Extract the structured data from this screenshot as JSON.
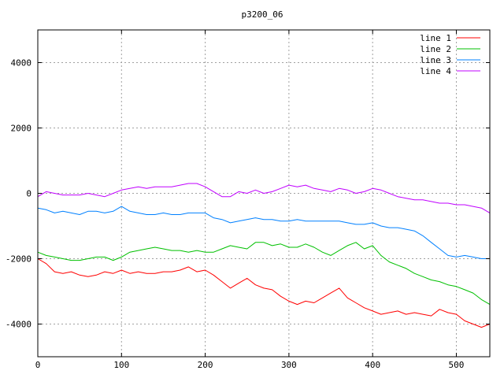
{
  "chart_data": {
    "type": "line",
    "title": "p3200_06",
    "xlabel": "",
    "ylabel": "",
    "xlim": [
      0,
      540
    ],
    "ylim": [
      -5000,
      5000
    ],
    "x_ticks": [
      0,
      100,
      200,
      300,
      400,
      500
    ],
    "y_ticks": [
      -4000,
      -2000,
      0,
      2000,
      4000
    ],
    "grid": true,
    "legend_position": "top-right",
    "x": [
      0,
      10,
      20,
      30,
      40,
      50,
      60,
      70,
      80,
      90,
      100,
      110,
      120,
      130,
      140,
      150,
      160,
      170,
      180,
      190,
      200,
      210,
      220,
      230,
      240,
      250,
      260,
      270,
      280,
      290,
      300,
      310,
      320,
      330,
      340,
      350,
      360,
      370,
      380,
      390,
      400,
      410,
      420,
      430,
      440,
      450,
      460,
      470,
      480,
      490,
      500,
      510,
      520,
      530,
      540
    ],
    "series": [
      {
        "name": "line 1",
        "color": "#ff0000",
        "values": [
          -2000,
          -2150,
          -2400,
          -2450,
          -2400,
          -2500,
          -2550,
          -2500,
          -2400,
          -2450,
          -2350,
          -2450,
          -2400,
          -2450,
          -2450,
          -2400,
          -2400,
          -2350,
          -2250,
          -2400,
          -2350,
          -2500,
          -2700,
          -2900,
          -2750,
          -2600,
          -2800,
          -2900,
          -2950,
          -3150,
          -3300,
          -3400,
          -3300,
          -3350,
          -3200,
          -3050,
          -2900,
          -3200,
          -3350,
          -3500,
          -3600,
          -3700,
          -3650,
          -3600,
          -3700,
          -3650,
          -3700,
          -3750,
          -3550,
          -3650,
          -3700,
          -3900,
          -4000,
          -4100,
          -4000
        ]
      },
      {
        "name": "line 2",
        "color": "#00c000",
        "values": [
          -1800,
          -1900,
          -1950,
          -2000,
          -2050,
          -2050,
          -2000,
          -1950,
          -1950,
          -2050,
          -1950,
          -1800,
          -1750,
          -1700,
          -1650,
          -1700,
          -1750,
          -1750,
          -1800,
          -1750,
          -1800,
          -1800,
          -1700,
          -1600,
          -1650,
          -1700,
          -1500,
          -1500,
          -1600,
          -1550,
          -1650,
          -1650,
          -1550,
          -1650,
          -1800,
          -1900,
          -1750,
          -1600,
          -1500,
          -1700,
          -1600,
          -1900,
          -2100,
          -2200,
          -2300,
          -2450,
          -2550,
          -2650,
          -2700,
          -2800,
          -2850,
          -2950,
          -3050,
          -3250,
          -3400
        ]
      },
      {
        "name": "line 3",
        "color": "#0080ff",
        "values": [
          -450,
          -500,
          -600,
          -550,
          -600,
          -650,
          -550,
          -550,
          -600,
          -550,
          -400,
          -550,
          -600,
          -650,
          -650,
          -600,
          -650,
          -650,
          -600,
          -600,
          -600,
          -750,
          -800,
          -900,
          -850,
          -800,
          -750,
          -800,
          -800,
          -850,
          -850,
          -800,
          -850,
          -850,
          -850,
          -850,
          -850,
          -900,
          -950,
          -950,
          -900,
          -1000,
          -1050,
          -1050,
          -1100,
          -1150,
          -1300,
          -1500,
          -1700,
          -1900,
          -1950,
          -1900,
          -1950,
          -2000,
          -2000
        ]
      },
      {
        "name": "line 4",
        "color": "#c000ff",
        "values": [
          -100,
          50,
          0,
          -50,
          -50,
          -50,
          0,
          -50,
          -100,
          0,
          100,
          150,
          200,
          150,
          200,
          200,
          200,
          250,
          300,
          300,
          200,
          50,
          -100,
          -100,
          50,
          0,
          100,
          0,
          50,
          150,
          250,
          200,
          250,
          150,
          100,
          50,
          150,
          100,
          0,
          50,
          150,
          100,
          0,
          -100,
          -150,
          -200,
          -200,
          -250,
          -300,
          -300,
          -350,
          -350,
          -400,
          -450,
          -600
        ]
      }
    ]
  }
}
